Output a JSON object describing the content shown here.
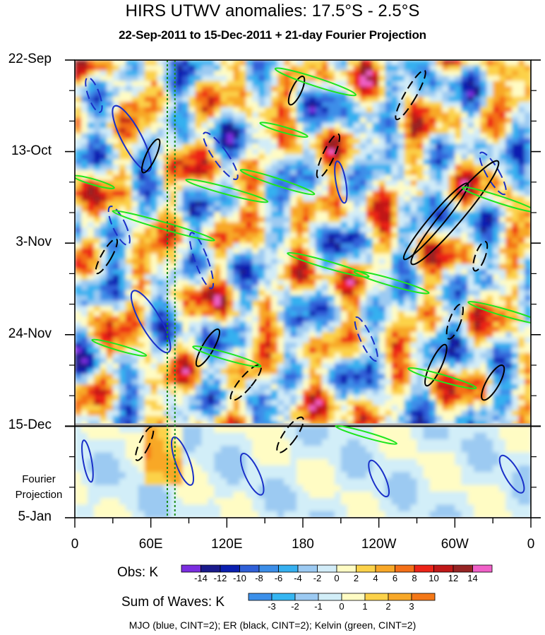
{
  "title": "HIRS UTWV anomalies: 17.5°S - 2.5°S",
  "subtitle": "22-Sep-2011 to 15-Dec-2011 + 21-day Fourier Projection",
  "projection_label_line1": "Fourier",
  "projection_label_line2": "Projection",
  "footer": "MJO (blue, CINT=2); ER (black, CINT=2); Kelvin (green, CINT=2)",
  "chart_data": {
    "type": "heatmap",
    "description_kind": "Hovmoller longitude-time",
    "xlabel": "",
    "ylabel": "",
    "x_ticks": [
      "0",
      "60E",
      "120E",
      "180",
      "120W",
      "60W",
      "0"
    ],
    "x_tick_longitudes": [
      0,
      60,
      120,
      180,
      240,
      300,
      360
    ],
    "y_ticks": [
      "22-Sep",
      "13-Oct",
      "3-Nov",
      "24-Nov",
      "15-Dec",
      "5-Jan"
    ],
    "y_tick_days": [
      0,
      21,
      42,
      63,
      84,
      105
    ],
    "observation_end_day": 84,
    "projection_days": 21,
    "colorbars": [
      {
        "title": "Obs: K",
        "levels": [
          "-14",
          "-12",
          "-10",
          "-8",
          "-6",
          "-4",
          "-2",
          "0",
          "2",
          "4",
          "6",
          "8",
          "10",
          "12",
          "14"
        ],
        "colors": [
          "#7b2ee0",
          "#1a1a8c",
          "#0b1fb0",
          "#3060d8",
          "#3c8ee8",
          "#36b0f0",
          "#9ccaf2",
          "#d2ecf8",
          "#fffcc4",
          "#fcd24a",
          "#f8a828",
          "#f47018",
          "#ec2418",
          "#c01818",
          "#962424",
          "#f060c8"
        ]
      },
      {
        "title": "Sum of Waves: K",
        "levels": [
          "-3",
          "-2",
          "-1",
          "0",
          "1",
          "2",
          "3"
        ],
        "colors": [
          "#3c90ea",
          "#36b6f2",
          "#9ccaf2",
          "#d2eef8",
          "#fffcc4",
          "#fcd24a",
          "#f8a828",
          "#f47818"
        ]
      }
    ],
    "reference_lines": [
      {
        "name": "green dotted",
        "longitude": 73
      },
      {
        "name": "green dotted",
        "longitude": 79
      }
    ],
    "overlays": [
      {
        "name": "MJO",
        "color": "blue",
        "cint": 2
      },
      {
        "name": "ER",
        "color": "black",
        "cint": 2
      },
      {
        "name": "Kelvin",
        "color": "green",
        "cint": 2
      }
    ]
  }
}
